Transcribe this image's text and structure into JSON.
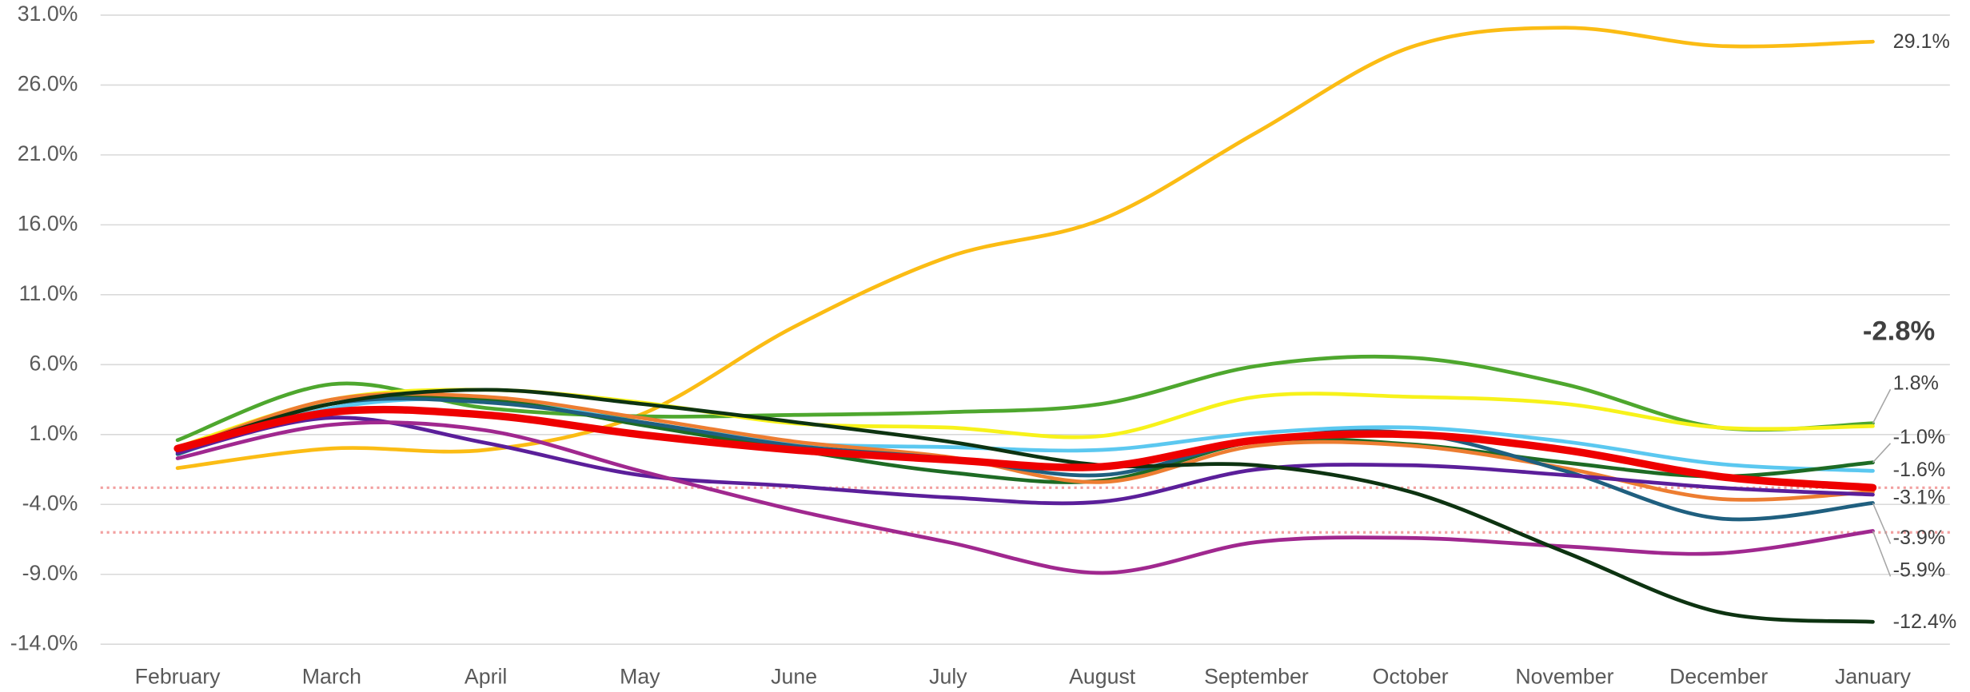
{
  "chart_data": {
    "type": "line",
    "categories": [
      "February",
      "March",
      "April",
      "May",
      "June",
      "July",
      "August",
      "September",
      "October",
      "November",
      "December",
      "January"
    ],
    "ylim": [
      -14,
      31
    ],
    "yticks": [
      {
        "value": 31,
        "label": "31.0%"
      },
      {
        "value": 26,
        "label": "26.0%"
      },
      {
        "value": 21,
        "label": "21.0%"
      },
      {
        "value": 16,
        "label": "16.0%"
      },
      {
        "value": 11,
        "label": "11.0%"
      },
      {
        "value": 6,
        "label": "6.0%"
      },
      {
        "value": 1,
        "label": "1.0%"
      },
      {
        "value": -4,
        "label": "-4.0%"
      },
      {
        "value": -9,
        "label": "-9.0%"
      },
      {
        "value": -14,
        "label": "-14.0%"
      }
    ],
    "grid": true,
    "reference_lines": [
      -2.8,
      -6.0
    ],
    "reference_line_color": "#f2a0a0",
    "series": [
      {
        "color": "#fbbc14",
        "values": [
          -1.4,
          0.0,
          -0.1,
          2.4,
          8.7,
          13.7,
          16.4,
          22.6,
          28.7,
          30.1,
          28.8,
          29.1
        ],
        "value_labels": [
          null,
          null,
          null,
          null,
          null,
          null,
          null,
          null,
          null,
          null,
          null,
          "29.1%"
        ]
      },
      {
        "color": "#4ea72e",
        "values": [
          0.6,
          4.6,
          2.9,
          2.3,
          2.4,
          2.6,
          3.2,
          5.9,
          6.5,
          4.6,
          1.5,
          1.8
        ],
        "value_labels": [
          null,
          null,
          null,
          null,
          null,
          null,
          null,
          null,
          null,
          null,
          null,
          "1.8%"
        ]
      },
      {
        "color": "#f7f21a",
        "values": [
          0.1,
          3.5,
          4.2,
          3.3,
          1.8,
          1.5,
          0.9,
          3.7,
          3.7,
          3.2,
          1.5,
          1.6
        ]
      },
      {
        "color": "#5bc8f0",
        "values": [
          -0.4,
          2.9,
          3.5,
          1.9,
          0.4,
          0.1,
          -0.1,
          1.1,
          1.5,
          0.5,
          -1.1,
          -1.6
        ],
        "value_labels": [
          null,
          null,
          null,
          null,
          null,
          null,
          null,
          null,
          null,
          null,
          null,
          "-1.6%"
        ]
      },
      {
        "color": "#1e6b24",
        "values": [
          -0.1,
          3.2,
          3.5,
          1.7,
          -0.1,
          -1.7,
          -2.3,
          0.5,
          0.3,
          -1.0,
          -2.0,
          -1.0
        ],
        "value_labels": [
          null,
          null,
          null,
          null,
          null,
          null,
          null,
          null,
          null,
          null,
          null,
          "-1.0%"
        ]
      },
      {
        "color": "#ed7d31",
        "values": [
          -0.1,
          3.5,
          3.7,
          2.2,
          0.5,
          -0.6,
          -2.4,
          0.2,
          0.2,
          -1.4,
          -3.6,
          -3.1
        ],
        "value_labels": [
          null,
          null,
          null,
          null,
          null,
          null,
          null,
          null,
          null,
          null,
          null,
          "-3.1%"
        ]
      },
      {
        "color": "#1f5f7f",
        "values": [
          -0.4,
          3.2,
          3.3,
          1.9,
          0.2,
          -0.7,
          -1.9,
          0.6,
          1.1,
          -1.6,
          -5.0,
          -3.9
        ],
        "value_labels": [
          null,
          null,
          null,
          null,
          null,
          null,
          null,
          null,
          null,
          null,
          null,
          "-3.9%"
        ]
      },
      {
        "color": "#5b1f9a",
        "values": [
          -0.3,
          2.2,
          0.4,
          -1.9,
          -2.7,
          -3.5,
          -3.8,
          -1.5,
          -1.2,
          -1.9,
          -2.8,
          -3.3
        ]
      },
      {
        "color": "#a0288f",
        "values": [
          -0.7,
          1.7,
          1.3,
          -1.6,
          -4.4,
          -6.7,
          -8.9,
          -6.7,
          -6.4,
          -7.0,
          -7.5,
          -5.9
        ],
        "value_labels": [
          null,
          null,
          null,
          null,
          null,
          null,
          null,
          null,
          null,
          null,
          null,
          "-5.9%"
        ]
      },
      {
        "color": "#0d3311",
        "values": [
          0.0,
          3.2,
          4.2,
          3.2,
          1.9,
          0.5,
          -1.2,
          -1.2,
          -3.1,
          -7.4,
          -11.7,
          -12.4
        ],
        "value_labels": [
          null,
          null,
          null,
          null,
          null,
          null,
          null,
          null,
          null,
          null,
          null,
          "-12.4%"
        ]
      },
      {
        "color": "#ee0000",
        "values": [
          0.0,
          2.6,
          2.4,
          1.0,
          -0.1,
          -0.8,
          -1.3,
          0.6,
          1.0,
          -0.1,
          -2.0,
          -2.8
        ],
        "value_labels": [
          null,
          null,
          null,
          null,
          null,
          null,
          null,
          null,
          null,
          null,
          null,
          "-2.8%"
        ]
      }
    ]
  }
}
